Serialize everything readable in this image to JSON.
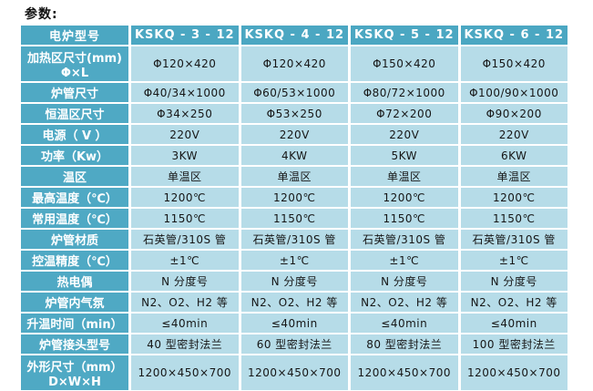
{
  "page_title": "参数:",
  "colors": {
    "header_bg": "#4ba7c2",
    "label_bg": "#4fa9c4",
    "cell_bg": "#b6dce8",
    "header_text": "#ffffff",
    "cell_text": "#161616",
    "page_bg": "#ffffff"
  },
  "table": {
    "header_label": "电炉型号",
    "models": [
      "KSKQ - 3 - 12",
      "KSKQ - 4 - 12",
      "KSKQ - 5 - 12",
      "KSKQ - 6 - 12"
    ],
    "rows": [
      {
        "label": "加热区尺寸(mm)",
        "label2": "Φ×L",
        "values": [
          "Φ120×420",
          "Φ120×420",
          "Φ150×420",
          "Φ150×420"
        ]
      },
      {
        "label": "炉管尺寸",
        "values": [
          "Φ40/34×1000",
          "Φ60/53×1000",
          "Φ80/72×1000",
          "Φ100/90×1000"
        ]
      },
      {
        "label": "恒温区尺寸",
        "values": [
          "Φ34×250",
          "Φ53×250",
          "Φ72×200",
          "Φ90×200"
        ]
      },
      {
        "label": "电源（ V ）",
        "values": [
          "220V",
          "220V",
          "220V",
          "220V"
        ]
      },
      {
        "label": "功率（Kw）",
        "values": [
          "3KW",
          "4KW",
          "5KW",
          "6KW"
        ]
      },
      {
        "label": "温区",
        "values": [
          "单温区",
          "单温区",
          "单温区",
          "单温区"
        ]
      },
      {
        "label": "最高温度（℃）",
        "values": [
          "1200℃",
          "1200℃",
          "1200℃",
          "1200℃"
        ]
      },
      {
        "label": "常用温度（℃）",
        "values": [
          "1150℃",
          "1150℃",
          "1150℃",
          "1150℃"
        ]
      },
      {
        "label": "炉管材质",
        "values": [
          "石英管/310S 管",
          "石英管/310S 管",
          "石英管/310S 管",
          "石英管/310S 管"
        ]
      },
      {
        "label": "控温精度（℃）",
        "values": [
          "±1℃",
          "±1℃",
          "±1℃",
          "±1℃"
        ]
      },
      {
        "label": "热电偶",
        "values": [
          "N 分度号",
          "N 分度号",
          "N 分度号",
          "N 分度号"
        ]
      },
      {
        "label": "炉管内气氛",
        "values": [
          "N2、O2、H2 等",
          "N2、O2、H2 等",
          "N2、O2、H2 等",
          "N2、O2、H2 等"
        ]
      },
      {
        "label": "升温时间（min）",
        "values": [
          "≤40min",
          "≤40min",
          "≤40min",
          "≤40min"
        ]
      },
      {
        "label": "炉管接头型号",
        "values": [
          "40 型密封法兰",
          "60 型密封法兰",
          "80 型密封法兰",
          "100 型密封法兰"
        ]
      },
      {
        "label": "外形尺寸（mm）",
        "label2": "D×W×H",
        "values": [
          "1200×450×700",
          "1200×450×700",
          "1200×450×700",
          "1200×450×700"
        ]
      }
    ]
  }
}
